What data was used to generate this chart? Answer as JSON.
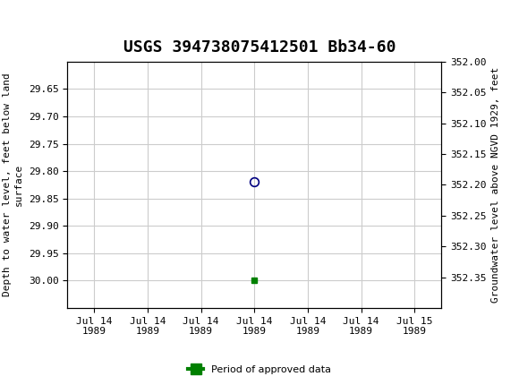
{
  "title": "USGS 394738075412501 Bb34-60",
  "title_fontsize": 13,
  "header_color": "#1a6b3c",
  "ylabel_left": "Depth to water level, feet below land\nsurface",
  "ylabel_right": "Groundwater level above NGVD 1929, feet",
  "ylim_left": [
    29.6,
    30.05
  ],
  "ylim_right": [
    352.0,
    352.4
  ],
  "left_yticks": [
    29.65,
    29.7,
    29.75,
    29.8,
    29.85,
    29.9,
    29.95,
    30.0
  ],
  "right_yticks": [
    352.35,
    352.3,
    352.25,
    352.2,
    352.15,
    352.1,
    352.05,
    352.0
  ],
  "xtick_labels": [
    "Jul 14\n1989",
    "Jul 14\n1989",
    "Jul 14\n1989",
    "Jul 14\n1989",
    "Jul 14\n1989",
    "Jul 14\n1989",
    "Jul 15\n1989"
  ],
  "xtick_positions": [
    0,
    1,
    2,
    3,
    4,
    5,
    6
  ],
  "xlim": [
    -0.5,
    6.5
  ],
  "data_point_x": 3.0,
  "data_point_y": 29.82,
  "data_point_color": "#000080",
  "data_point_marker": "o",
  "data_point_markersize": 7,
  "approved_x": 3.0,
  "approved_y": 30.0,
  "approved_color": "#008000",
  "approved_marker": "s",
  "approved_markersize": 4,
  "grid_color": "#cccccc",
  "legend_label": "Period of approved data",
  "legend_color": "#008000",
  "bg_color": "#ffffff",
  "plot_bg_color": "#ffffff",
  "font_family": "monospace"
}
